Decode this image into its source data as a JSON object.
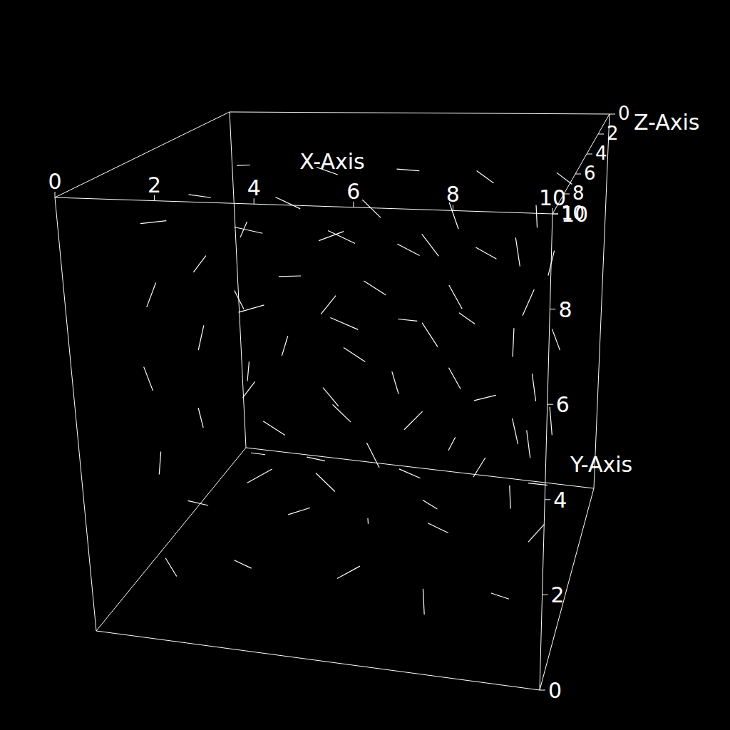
{
  "chart_data": {
    "type": "vector_field_3d",
    "x_label": "X-Axis",
    "y_label": "Y-Axis",
    "z_label": "Z-Axis",
    "xlim": [
      0,
      10
    ],
    "ylim": [
      0,
      10
    ],
    "zlim": [
      0,
      10
    ],
    "xticks": [
      0,
      2,
      4,
      6,
      8,
      10
    ],
    "yticks": [
      0,
      2,
      4,
      6,
      8,
      10
    ],
    "zticks": [
      0,
      2,
      4,
      6,
      8,
      10
    ],
    "color": "#ffffff",
    "vectors": [
      [
        1,
        1,
        2,
        0.4,
        0.1,
        0.2
      ],
      [
        3,
        1,
        2,
        -0.3,
        0.2,
        0.3
      ],
      [
        5,
        1,
        2,
        0.5,
        -0.1,
        0.1
      ],
      [
        7,
        1,
        2,
        0.2,
        0.3,
        -0.3
      ],
      [
        9,
        1,
        2,
        -0.4,
        0.1,
        0.2
      ],
      [
        1,
        3,
        2,
        0.1,
        0.5,
        0.1
      ],
      [
        3,
        3,
        2,
        0.4,
        -0.3,
        0.2
      ],
      [
        5,
        3,
        2,
        -0.2,
        0.4,
        -0.2
      ],
      [
        7,
        3,
        2,
        0.5,
        0.2,
        0.1
      ],
      [
        9,
        3,
        2,
        0.1,
        -0.5,
        0.2
      ],
      [
        1,
        5,
        2,
        -0.1,
        0.5,
        0.2
      ],
      [
        3,
        5,
        2,
        0.3,
        0.4,
        -0.1
      ],
      [
        5,
        5,
        2,
        0.5,
        0.1,
        0.3
      ],
      [
        7,
        5,
        2,
        -0.3,
        0.3,
        0.2
      ],
      [
        9,
        5,
        2,
        0.2,
        -0.4,
        0.1
      ],
      [
        1,
        7,
        2,
        0.2,
        0.4,
        0.1
      ],
      [
        3,
        7,
        2,
        0.5,
        0.2,
        -0.1
      ],
      [
        5,
        7,
        2,
        0.5,
        -0.2,
        0.1
      ],
      [
        7,
        7,
        2,
        0.4,
        -0.3,
        -0.2
      ],
      [
        9,
        7,
        2,
        -0.1,
        -0.5,
        0.1
      ],
      [
        1,
        9,
        2,
        0.4,
        0.1,
        0.3
      ],
      [
        3,
        9,
        2,
        0.5,
        -0.1,
        0.2
      ],
      [
        5,
        9,
        2,
        0.5,
        0.0,
        0.1
      ],
      [
        7,
        9,
        2,
        0.4,
        -0.2,
        0.2
      ],
      [
        9,
        9,
        2,
        0.3,
        -0.3,
        -0.2
      ],
      [
        1,
        1,
        5,
        -0.3,
        0.2,
        0.3
      ],
      [
        3,
        1,
        5,
        0.4,
        0.1,
        -0.2
      ],
      [
        5,
        1,
        5,
        0.1,
        0.3,
        0.4
      ],
      [
        7,
        1,
        5,
        -0.4,
        0.2,
        0.1
      ],
      [
        9,
        1,
        5,
        0.3,
        0.3,
        -0.2
      ],
      [
        1,
        3,
        5,
        0.0,
        0.5,
        0.2
      ],
      [
        3,
        3,
        5,
        -0.4,
        0.3,
        0.1
      ],
      [
        5,
        3,
        5,
        0.3,
        -0.4,
        0.2
      ],
      [
        7,
        3,
        5,
        0.2,
        0.4,
        0.3
      ],
      [
        9,
        3,
        5,
        -0.1,
        0.5,
        -0.1
      ],
      [
        1,
        5,
        5,
        0.1,
        0.5,
        -0.1
      ],
      [
        3,
        5,
        5,
        0.2,
        0.5,
        0.2
      ],
      [
        5,
        5,
        5,
        -0.4,
        0.3,
        0.1
      ],
      [
        7,
        5,
        5,
        0.3,
        -0.3,
        0.3
      ],
      [
        9,
        5,
        5,
        0.1,
        -0.5,
        0.1
      ],
      [
        1,
        7,
        5,
        0.3,
        0.4,
        0.1
      ],
      [
        3,
        7,
        5,
        0.5,
        0.1,
        0.2
      ],
      [
        5,
        7,
        5,
        0.4,
        -0.3,
        -0.1
      ],
      [
        7,
        7,
        5,
        0.3,
        -0.4,
        0.2
      ],
      [
        9,
        7,
        5,
        -0.2,
        -0.5,
        0.1
      ],
      [
        1,
        9,
        5,
        0.5,
        0.0,
        0.2
      ],
      [
        3,
        9,
        5,
        0.5,
        -0.2,
        0.1
      ],
      [
        5,
        9,
        5,
        0.4,
        -0.3,
        0.2
      ],
      [
        7,
        9,
        5,
        0.2,
        -0.5,
        0.1
      ],
      [
        9,
        9,
        5,
        0.0,
        -0.5,
        -0.2
      ],
      [
        1,
        1,
        8,
        0.3,
        -0.2,
        0.3
      ],
      [
        3,
        1,
        8,
        -0.2,
        0.3,
        0.4
      ],
      [
        5,
        1,
        8,
        0.4,
        0.2,
        -0.2
      ],
      [
        7,
        1,
        8,
        0.1,
        -0.3,
        0.4
      ],
      [
        9,
        1,
        8,
        -0.3,
        0.2,
        0.3
      ],
      [
        1,
        3,
        8,
        0.1,
        0.5,
        0.1
      ],
      [
        3,
        3,
        8,
        0.4,
        0.2,
        -0.3
      ],
      [
        5,
        3,
        8,
        -0.3,
        0.4,
        0.2
      ],
      [
        7,
        3,
        8,
        0.2,
        -0.3,
        -0.4
      ],
      [
        9,
        3,
        8,
        0.0,
        0.5,
        0.2
      ],
      [
        1,
        5,
        8,
        -0.1,
        0.5,
        0.1
      ],
      [
        3,
        5,
        8,
        0.3,
        0.4,
        0.2
      ],
      [
        5,
        5,
        8,
        0.4,
        -0.2,
        0.3
      ],
      [
        7,
        5,
        8,
        -0.3,
        -0.3,
        0.2
      ],
      [
        9,
        5,
        8,
        0.1,
        -0.5,
        -0.1
      ],
      [
        1,
        7,
        8,
        0.2,
        0.5,
        0.0
      ],
      [
        3,
        7,
        8,
        0.5,
        0.2,
        0.1
      ],
      [
        5,
        7,
        8,
        0.5,
        -0.2,
        0.0
      ],
      [
        7,
        7,
        8,
        0.3,
        -0.4,
        0.1
      ],
      [
        9,
        7,
        8,
        0.0,
        -0.5,
        0.1
      ],
      [
        1,
        9,
        8,
        0.5,
        0.1,
        0.1
      ],
      [
        3,
        9,
        8,
        0.5,
        -0.1,
        0.0
      ],
      [
        5,
        9,
        8,
        0.5,
        -0.2,
        0.1
      ],
      [
        7,
        9,
        8,
        0.3,
        -0.4,
        0.0
      ],
      [
        9,
        9,
        8,
        0.1,
        -0.5,
        0.1
      ]
    ]
  }
}
